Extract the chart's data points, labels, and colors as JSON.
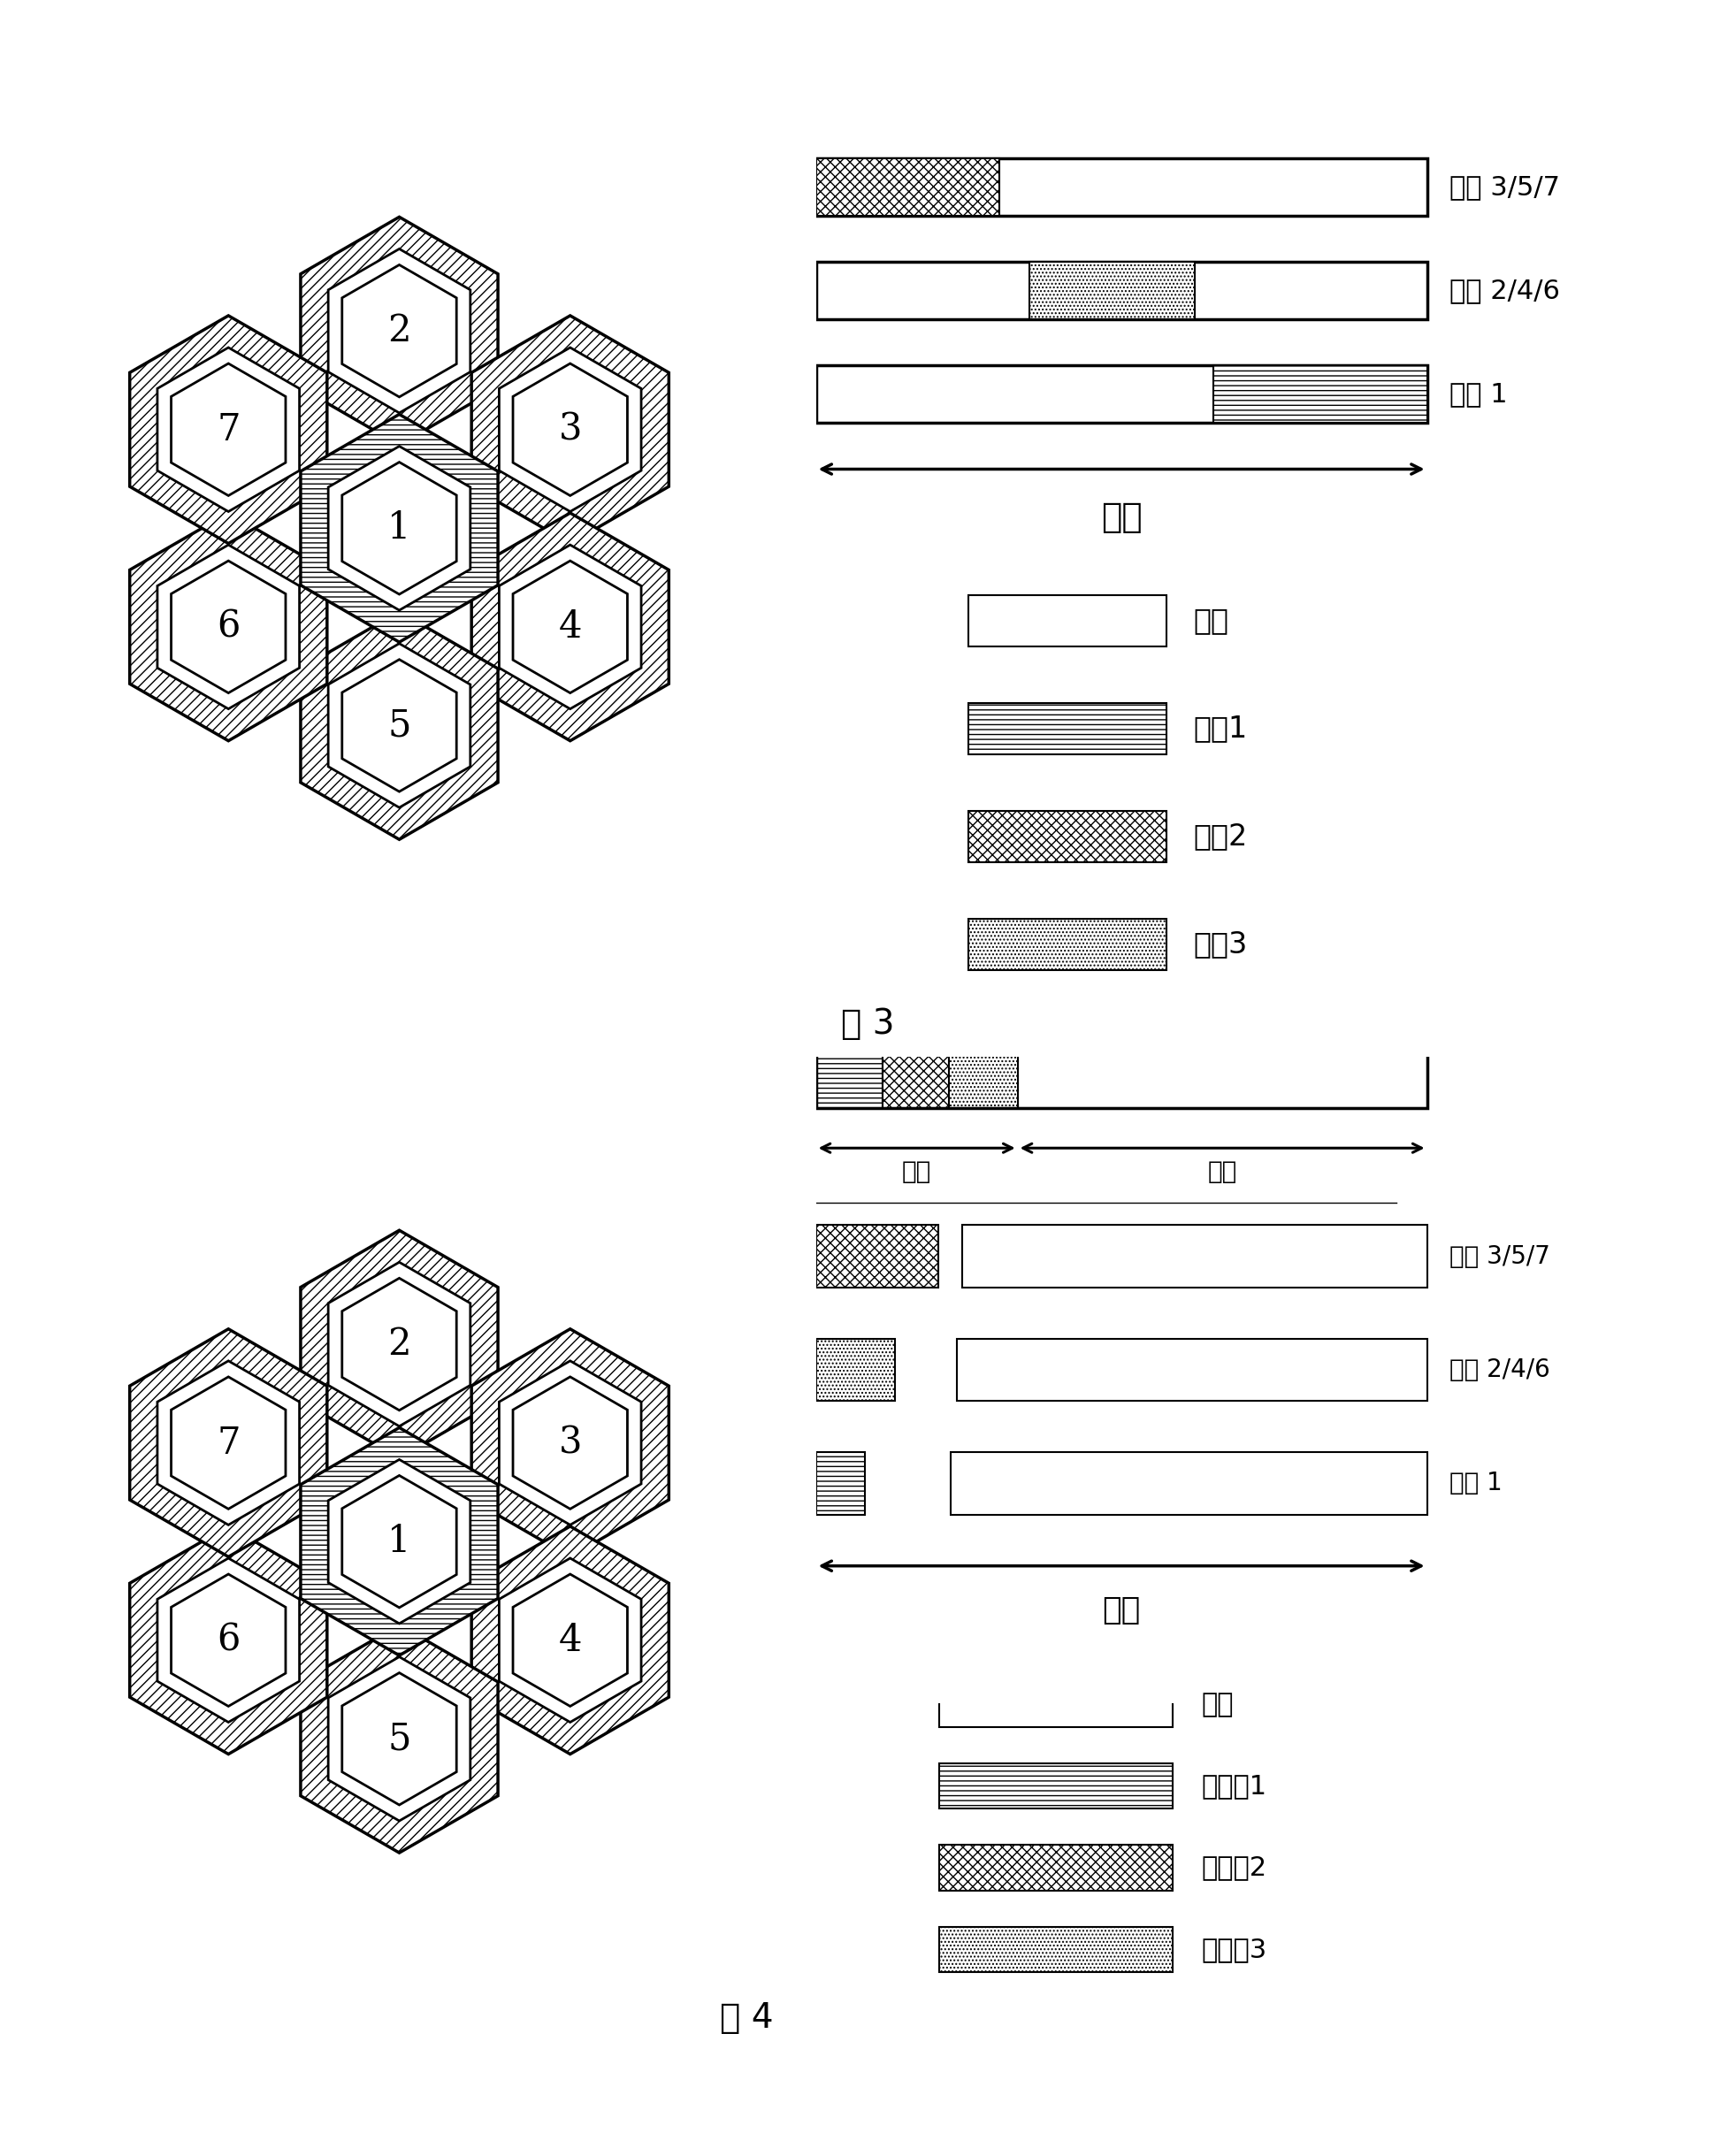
{
  "fig3_caption": "图 3",
  "fig4_caption": "图 4",
  "legend1_labels": [
    "副频",
    "主频1",
    "主频2",
    "主频3"
  ],
  "legend2_labels": [
    "副频",
    "子主频1",
    "子主频2",
    "子主频3"
  ],
  "freq_label": "频率",
  "bar_label_357": "小区 3/5/7",
  "bar_label_246": "小区 2/4/6",
  "bar_label_1": "小区 1",
  "fig4_main_label": "主频",
  "fig4_sub_label": "副频",
  "cell_numbers": [
    1,
    2,
    3,
    4,
    5,
    6,
    7
  ]
}
